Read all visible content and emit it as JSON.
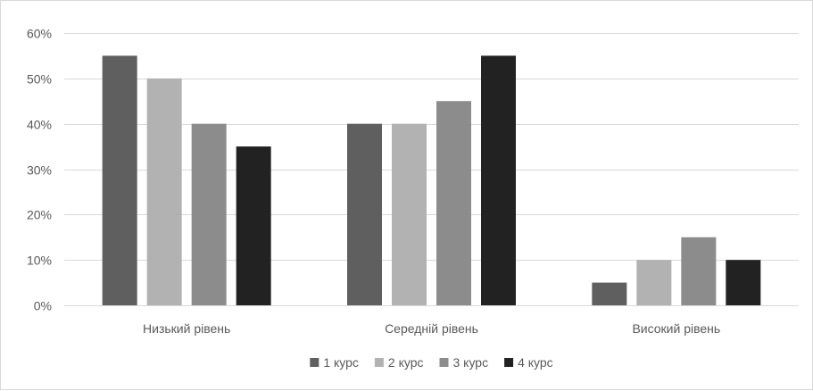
{
  "chart_data": {
    "type": "bar",
    "categories": [
      "Низький рівень",
      "Середній рівень",
      "Високий рівень"
    ],
    "series": [
      {
        "name": "1 курс",
        "values": [
          55,
          40,
          5
        ],
        "color": "#5f5f5f"
      },
      {
        "name": "2 курс",
        "values": [
          50,
          40,
          10
        ],
        "color": "#b2b2b2"
      },
      {
        "name": "3 курс",
        "values": [
          40,
          45,
          15
        ],
        "color": "#8c8c8c"
      },
      {
        "name": "4 курс",
        "values": [
          35,
          55,
          10
        ],
        "color": "#222222"
      }
    ],
    "ylim": [
      0,
      60
    ],
    "y_ticks": [
      0,
      10,
      20,
      30,
      40,
      50,
      60
    ],
    "y_tick_format": "%",
    "grid": true,
    "legend_position": "bottom",
    "gridline_color": "#d9d9d9"
  }
}
